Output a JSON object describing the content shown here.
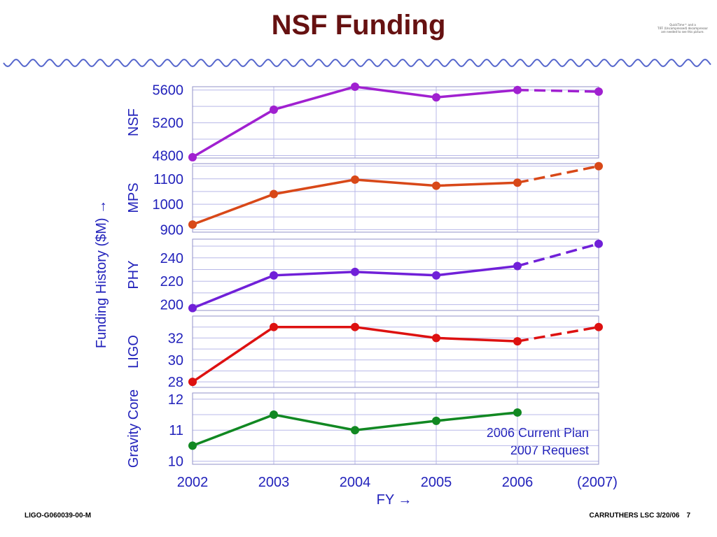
{
  "slide": {
    "title": "NSF Funding",
    "quicktime_notice": [
      "QuickTime™ and a",
      "TIFF (Uncompressed) decompressor",
      "are needed to see this picture."
    ],
    "footer_left": "LIGO-G060039-00-M",
    "footer_right": "CARRUTHERS LSC 3/20/06",
    "page_number": "7"
  },
  "colors": {
    "axis_text": "#2222bb",
    "grid": "#b8b8e8",
    "wave": "#5566cc",
    "title": "#661111"
  },
  "chart_data": {
    "type": "line",
    "x_tick_labels": [
      "2002",
      "2003",
      "2004",
      "2005",
      "2006",
      "(2007)"
    ],
    "xlabel": "FY →",
    "ylabel": "Funding History ($M) →",
    "legend": {
      "solid_label": "2006 Current Plan",
      "dashed_label": "2007 Request",
      "placement": "bottom-right of Gravity Core panel"
    },
    "grid": true,
    "panels": [
      {
        "name": "NSF",
        "color": "#a020d0",
        "ylim": [
          4770,
          5640
        ],
        "yticks": [
          4800,
          5200,
          5600
        ],
        "values": [
          4780,
          5360,
          5640,
          5510,
          5600
        ],
        "request_2007": 5580
      },
      {
        "name": "MPS",
        "color": "#d84818",
        "ylim": [
          890,
          1160
        ],
        "yticks": [
          900,
          1000,
          1100
        ],
        "values": [
          920,
          1040,
          1097,
          1073,
          1085
        ],
        "request_2007": 1150
      },
      {
        "name": "PHY",
        "color": "#7020d8",
        "ylim": [
          195,
          256
        ],
        "yticks": [
          200,
          220,
          240
        ],
        "values": [
          197,
          225,
          228,
          225,
          233
        ],
        "request_2007": 252
      },
      {
        "name": "LIGO",
        "color": "#dd1111",
        "ylim": [
          27.5,
          34
        ],
        "yticks": [
          28,
          30,
          32
        ],
        "values": [
          28.0,
          33.0,
          33.0,
          32.0,
          31.7
        ],
        "request_2007": 33.0
      },
      {
        "name": "Gravity Core",
        "color": "#118822",
        "ylim": [
          9.9,
          12.2
        ],
        "yticks": [
          10,
          11,
          12
        ],
        "values": [
          10.5,
          11.5,
          11.0,
          11.3,
          11.57
        ],
        "request_2007": null
      }
    ]
  }
}
